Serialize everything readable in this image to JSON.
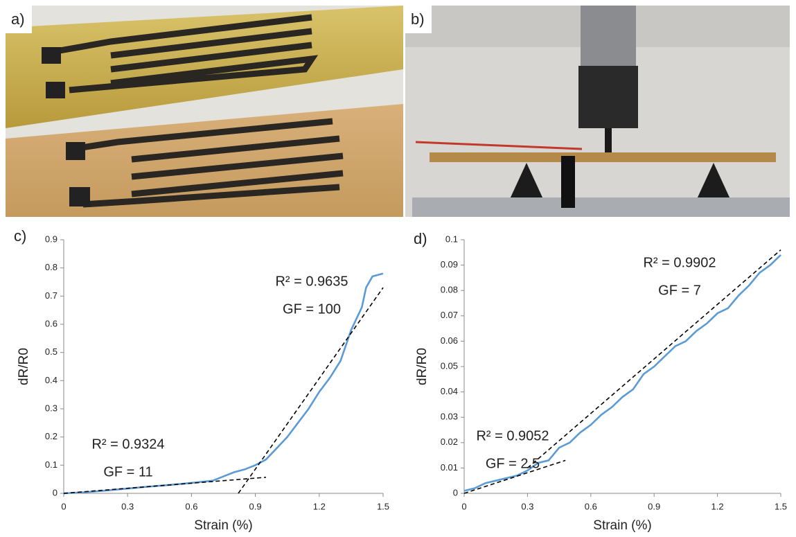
{
  "panel_labels": [
    "a)",
    "b)"
  ],
  "chart_data": [
    {
      "type": "line",
      "label": "c)",
      "x_label": "Strain (%)",
      "y_label": "dR/R0",
      "xlim": [
        0,
        1.5
      ],
      "ylim": [
        0,
        0.9
      ],
      "xticks": [
        0,
        0.3,
        0.6,
        0.9,
        1.2,
        1.5
      ],
      "yticks": [
        0,
        0.1,
        0.2,
        0.3,
        0.4,
        0.5,
        0.6,
        0.7,
        0.8,
        0.9
      ],
      "grid": false,
      "annotations": [
        "R² = 0.9635",
        "GF = 100",
        "R² = 0.9324",
        "GF = 11"
      ],
      "series": [
        {
          "color": "#5b9bd5",
          "style": "solid",
          "x": [
            0,
            0.1,
            0.2,
            0.3,
            0.4,
            0.5,
            0.6,
            0.7,
            0.75,
            0.8,
            0.85,
            0.9,
            0.95,
            1.0,
            1.05,
            1.1,
            1.15,
            1.2,
            1.25,
            1.3,
            1.35,
            1.4,
            1.42,
            1.45,
            1.5
          ],
          "values": [
            0,
            0.004,
            0.01,
            0.017,
            0.024,
            0.03,
            0.037,
            0.045,
            0.06,
            0.075,
            0.085,
            0.1,
            0.12,
            0.16,
            0.2,
            0.25,
            0.3,
            0.36,
            0.41,
            0.47,
            0.58,
            0.66,
            0.73,
            0.77,
            0.78
          ]
        },
        {
          "color": "#000000",
          "style": "dashed",
          "x": [
            0,
            0.95
          ],
          "values": [
            0,
            0.057
          ]
        },
        {
          "color": "#000000",
          "style": "dashed",
          "x": [
            0.82,
            1.5
          ],
          "values": [
            0,
            0.73
          ]
        }
      ]
    },
    {
      "type": "line",
      "label": "d)",
      "x_label": "Strain (%)",
      "y_label": "dR/R0",
      "xlim": [
        0,
        1.5
      ],
      "ylim": [
        0,
        0.1
      ],
      "xticks": [
        0,
        0.3,
        0.6,
        0.9,
        1.2,
        1.5
      ],
      "yticks": [
        0,
        0.01,
        0.02,
        0.03,
        0.04,
        0.05,
        0.06,
        0.07,
        0.08,
        0.09,
        0.1
      ],
      "grid": false,
      "annotations": [
        "R² = 0.9902",
        "GF = 7",
        "R² = 0.9052",
        "GF = 2.5"
      ],
      "series": [
        {
          "color": "#5b9bd5",
          "style": "solid",
          "x": [
            0,
            0.05,
            0.1,
            0.15,
            0.2,
            0.25,
            0.3,
            0.35,
            0.4,
            0.45,
            0.5,
            0.55,
            0.6,
            0.65,
            0.7,
            0.75,
            0.8,
            0.85,
            0.9,
            0.95,
            1.0,
            1.05,
            1.1,
            1.15,
            1.2,
            1.25,
            1.3,
            1.35,
            1.4,
            1.45,
            1.5
          ],
          "values": [
            0.001,
            0.002,
            0.004,
            0.005,
            0.006,
            0.007,
            0.009,
            0.012,
            0.013,
            0.018,
            0.02,
            0.024,
            0.027,
            0.031,
            0.034,
            0.038,
            0.041,
            0.047,
            0.05,
            0.054,
            0.058,
            0.06,
            0.064,
            0.067,
            0.071,
            0.073,
            0.078,
            0.082,
            0.087,
            0.09,
            0.094
          ]
        },
        {
          "color": "#000000",
          "style": "dashed",
          "x": [
            0,
            0.48
          ],
          "values": [
            0,
            0.013
          ]
        },
        {
          "color": "#000000",
          "style": "dashed",
          "x": [
            0.3,
            1.5
          ],
          "values": [
            0.01,
            0.096
          ]
        }
      ]
    }
  ]
}
